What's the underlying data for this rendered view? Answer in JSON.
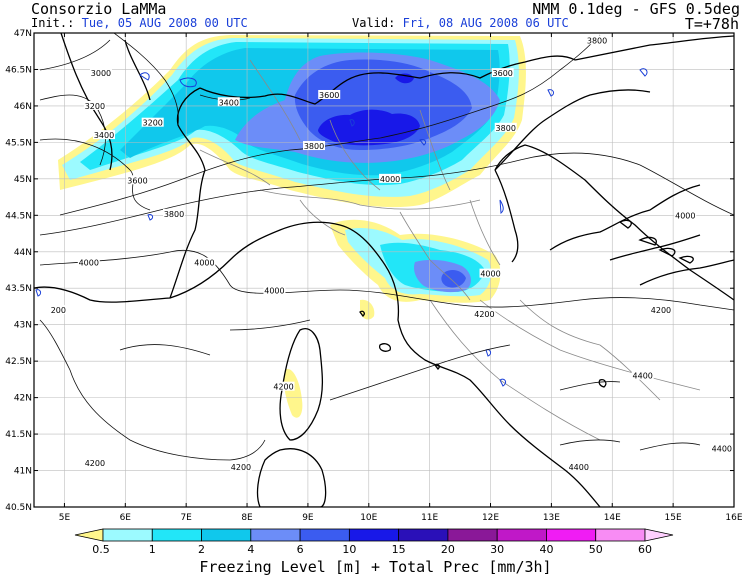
{
  "header": {
    "org": "Consorzio LaMMa",
    "model": "NMM 0.1deg - GFS 0.5deg",
    "init_label": "Init.:",
    "init_value": "Tue, 05 AUG 2008  00 UTC",
    "valid_label": "Valid:",
    "valid_value": "Fri, 08 AUG 2008  06 UTC",
    "forecast_step": "T=+78h"
  },
  "axes": {
    "latitudes": [
      "47N",
      "46.5N",
      "46N",
      "45.5N",
      "45N",
      "44.5N",
      "44N",
      "43.5N",
      "43N",
      "42.5N",
      "42N",
      "41.5N",
      "41N",
      "40.5N"
    ],
    "longitudes": [
      "5E",
      "6E",
      "7E",
      "8E",
      "9E",
      "10E",
      "11E",
      "12E",
      "13E",
      "14E",
      "15E",
      "16E"
    ]
  },
  "contour_labels": [
    {
      "text": "3000",
      "lon": 5.6,
      "lat": 46.45
    },
    {
      "text": "3200",
      "lon": 5.5,
      "lat": 46.0
    },
    {
      "text": "3200",
      "lon": 6.45,
      "lat": 45.77
    },
    {
      "text": "3400",
      "lon": 5.65,
      "lat": 45.6
    },
    {
      "text": "3400",
      "lon": 7.7,
      "lat": 46.05
    },
    {
      "text": "3600",
      "lon": 6.2,
      "lat": 44.98
    },
    {
      "text": "3600",
      "lon": 9.35,
      "lat": 46.15
    },
    {
      "text": "3600",
      "lon": 12.2,
      "lat": 46.45
    },
    {
      "text": "3800",
      "lon": 6.8,
      "lat": 44.52
    },
    {
      "text": "3800",
      "lon": 9.1,
      "lat": 45.45
    },
    {
      "text": "3800",
      "lon": 12.25,
      "lat": 45.7
    },
    {
      "text": "3800",
      "lon": 13.75,
      "lat": 46.9
    },
    {
      "text": "4000",
      "lon": 5.4,
      "lat": 43.85
    },
    {
      "text": "4000",
      "lon": 7.3,
      "lat": 43.85
    },
    {
      "text": "4000",
      "lon": 8.45,
      "lat": 43.47
    },
    {
      "text": "4000",
      "lon": 10.35,
      "lat": 45.0
    },
    {
      "text": "4000",
      "lon": 12.0,
      "lat": 43.7
    },
    {
      "text": "4000",
      "lon": 15.2,
      "lat": 44.5
    },
    {
      "text": "200",
      "lon": 4.9,
      "lat": 43.2
    },
    {
      "text": "4200",
      "lon": 8.6,
      "lat": 42.15
    },
    {
      "text": "4200",
      "lon": 11.9,
      "lat": 43.15
    },
    {
      "text": "4200",
      "lon": 14.8,
      "lat": 43.2
    },
    {
      "text": "4200",
      "lon": 5.5,
      "lat": 41.1
    },
    {
      "text": "4200",
      "lon": 7.9,
      "lat": 41.05
    },
    {
      "text": "4400",
      "lon": 14.5,
      "lat": 42.3
    },
    {
      "text": "4400",
      "lon": 15.8,
      "lat": 41.3
    },
    {
      "text": "4400",
      "lon": 13.45,
      "lat": 41.05
    }
  ],
  "legend": {
    "title": "Freezing Level [m] + Total Prec [mm/3h]",
    "ticks": [
      "0.5",
      "1",
      "2",
      "4",
      "6",
      "10",
      "15",
      "20",
      "30",
      "40",
      "50",
      "60"
    ],
    "colors": [
      "#fff68c",
      "#9cfaff",
      "#22e6f8",
      "#10c8ec",
      "#6c8df8",
      "#3b5cf0",
      "#1818e8",
      "#2a10b8",
      "#8a1898",
      "#c018c8",
      "#f01cf4",
      "#f88cf4",
      "#ffd0ff"
    ]
  }
}
